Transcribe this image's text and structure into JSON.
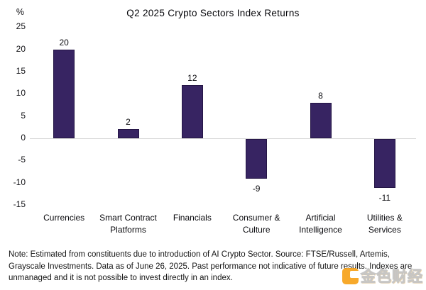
{
  "chart_data": {
    "type": "bar",
    "title": "Q2 2025 Crypto Sectors Index Returns",
    "unit_label": "%",
    "categories": [
      "Currencies",
      "Smart Contract Platforms",
      "Financials",
      "Consumer & Culture",
      "Artificial Intelligence",
      "Utilities & Services"
    ],
    "values": [
      20,
      2,
      12,
      -9,
      8,
      -11
    ],
    "value_labels": [
      "20",
      "2",
      "12",
      "-9",
      "8",
      "-11"
    ],
    "yticks": [
      25,
      20,
      15,
      10,
      5,
      0,
      -5,
      -10,
      -15
    ],
    "ylim": [
      -15,
      25
    ],
    "bar_color": "#372462",
    "zero_line_color": "#d9d9d9",
    "grid": "zero-line-only",
    "legend": "none",
    "xlabel": "",
    "ylabel": "%"
  },
  "note": "Note: Estimated from constituents due to introduction of AI Crypto Sector. Source: FTSE/Russell, Artemis, Grayscale Investments. Data as of June 26, 2025. Past performance not indicative of future results. Indexes are unmanaged and it is not possible to invest directly in an index.",
  "watermark": {
    "text": "金色财经",
    "accent_color": "#f7a21a"
  }
}
